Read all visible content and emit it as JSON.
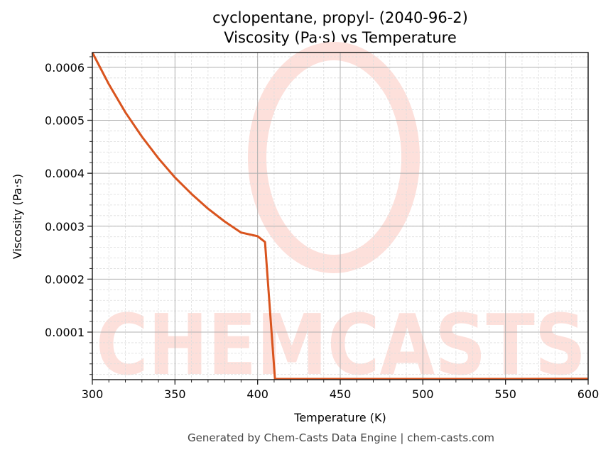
{
  "title_line1": "cyclopentane, propyl- (2040-96-2)",
  "title_line2": "Viscosity (Pa·s) vs Temperature",
  "footer": "Generated by Chem-Casts Data Engine | chem-casts.com",
  "watermark": "CHEMCASTS",
  "colors": {
    "line": "#d9541e",
    "grid_major": "#b0b0b0",
    "grid_minor": "#dddddd",
    "watermark": "#fde0db"
  },
  "chart_data": {
    "type": "line",
    "title": "cyclopentane, propyl- (2040-96-2)\nViscosity (Pa·s) vs Temperature",
    "xlabel": "Temperature (K)",
    "ylabel": "Viscosity (Pa·s)",
    "xlim": [
      300,
      600
    ],
    "ylim": [
      1.02e-05,
      0.000628
    ],
    "x_ticks": [
      "300",
      "350",
      "400",
      "450",
      "500",
      "550",
      "600"
    ],
    "y_ticks": [
      "0.0001",
      "0.0002",
      "0.0003",
      "0.0004",
      "0.0005",
      "0.0006"
    ],
    "grid": true,
    "legend": null,
    "series": [
      {
        "name": "Viscosity",
        "x": [
          300,
          310,
          320,
          330,
          340,
          350,
          360,
          370,
          380,
          390,
          400,
          404.5,
          410.5,
          450,
          500,
          550,
          600
        ],
        "y": [
          0.00063,
          0.000568,
          0.000515,
          0.000469,
          0.000428,
          0.000392,
          0.000361,
          0.000333,
          0.000309,
          0.000288,
          0.000281,
          0.00027,
          1.05e-05,
          1.08e-05,
          1.12e-05,
          1.16e-05,
          1.2e-05
        ]
      }
    ]
  }
}
